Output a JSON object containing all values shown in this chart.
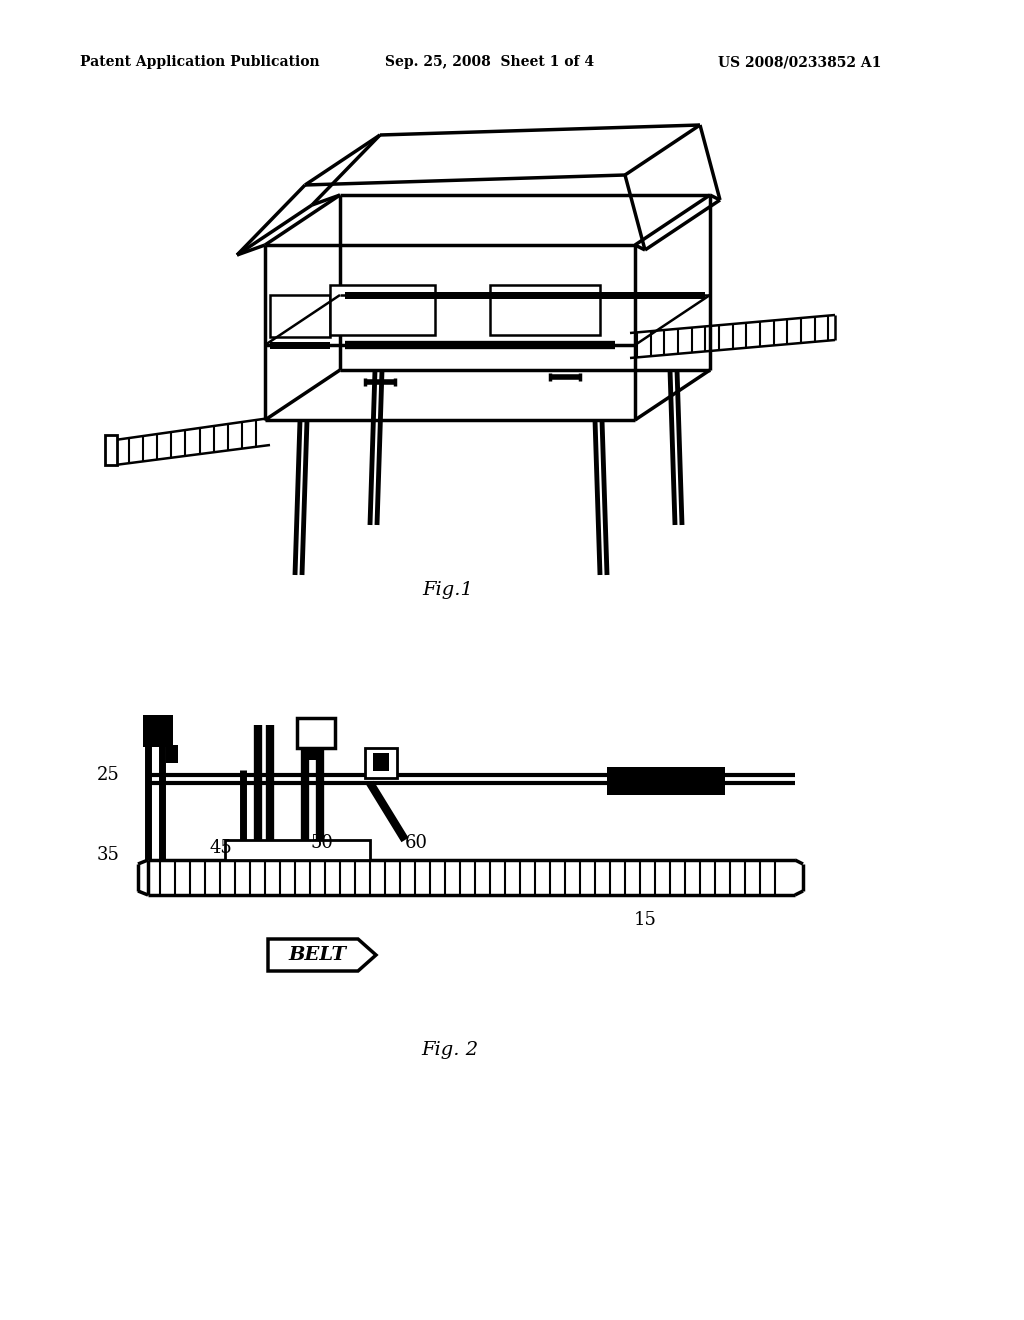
{
  "bg_color": "#ffffff",
  "header_left": "Patent Application Publication",
  "header_center": "Sep. 25, 2008  Sheet 1 of 4",
  "header_right": "US 2008/0233852 A1",
  "fig1_caption": "Fig.1",
  "fig2_caption": "Fig. 2",
  "belt_label": "BELT",
  "label_25": "25",
  "label_35": "35",
  "label_45": "45",
  "label_50": "50",
  "label_60": "60",
  "label_15": "15"
}
